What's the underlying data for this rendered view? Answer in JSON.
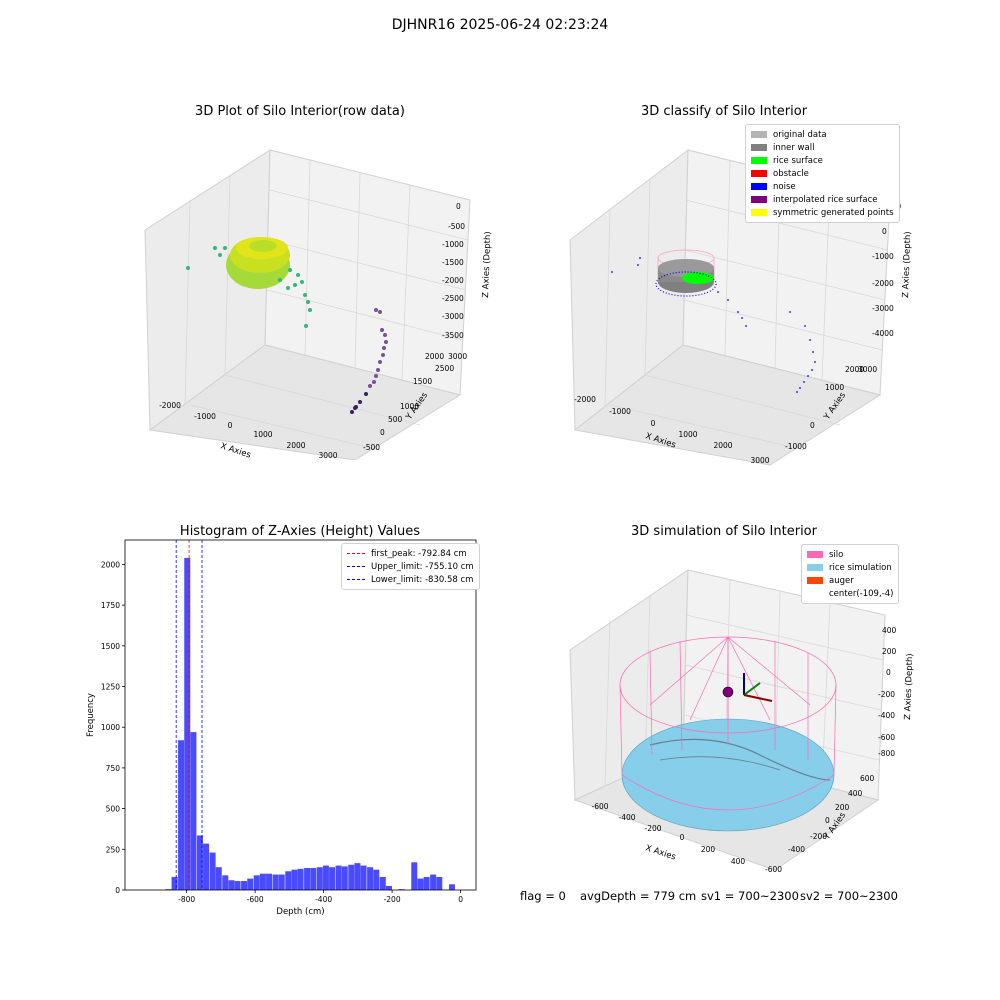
{
  "suptitle": "DJHNR16 2025-06-24 02:23:24",
  "panels": {
    "raw": {
      "title": "3D Plot of Silo Interior(row data)",
      "xlabel": "X Axies",
      "ylabel": "Y Axies",
      "zlabel": "Z Axies (Depth)",
      "xticks": [
        "-2000",
        "-1000",
        "0",
        "1000",
        "2000",
        "3000"
      ],
      "yticks": [
        "-500",
        "0",
        "500",
        "1000",
        "1500",
        "2000",
        "2500",
        "3000"
      ],
      "zticks": [
        "0",
        "-500",
        "-1000",
        "-1500",
        "-2000",
        "-2500",
        "-3000",
        "-3500"
      ]
    },
    "classify": {
      "title": "3D classify of Silo Interior",
      "xlabel": "X Axies",
      "ylabel": "Y Axies",
      "zlabel": "Z Axies (Depth)",
      "xticks": [
        "-2000",
        "-1000",
        "0",
        "1000",
        "2000",
        "3000"
      ],
      "yticks": [
        "-1000",
        "0",
        "1000",
        "2000",
        "3000"
      ],
      "zticks": [
        "1000",
        "0",
        "-1000",
        "-2000",
        "-3000",
        "-4000"
      ],
      "legend": [
        {
          "label": "original data",
          "color": "#b4b4b4"
        },
        {
          "label": "inner wall",
          "color": "#808080"
        },
        {
          "label": "rice surface",
          "color": "#00ff00"
        },
        {
          "label": "obstacle",
          "color": "#ff0000"
        },
        {
          "label": "noise",
          "color": "#0000ff"
        },
        {
          "label": "interpolated rice surface",
          "color": "#800080"
        },
        {
          "label": "symmetric generated points",
          "color": "#ffff00"
        }
      ]
    },
    "histogram": {
      "title": "Histogram of Z-Axies (Height) Values",
      "legend": [
        {
          "label": "first_peak: -792.84 cm",
          "color": "#ff0000"
        },
        {
          "label": "Upper_limit: -755.10 cm",
          "color": "#0000ff"
        },
        {
          "label": "Lower_limit: -830.58 cm",
          "color": "#0000ff"
        }
      ]
    },
    "simulation": {
      "title": "3D simulation of Silo Interior",
      "xlabel": "X Axies",
      "ylabel": "Y Axies",
      "zlabel": "Z Axies (Depth)",
      "xticks": [
        "-600",
        "-400",
        "-200",
        "0",
        "200",
        "400"
      ],
      "yticks": [
        "-600",
        "-400",
        "-200",
        "0",
        "200",
        "400",
        "600"
      ],
      "zticks": [
        "400",
        "200",
        "0",
        "-200",
        "-400",
        "-600",
        "-800"
      ],
      "legend": [
        {
          "label": "silo",
          "color": "#ff69b4"
        },
        {
          "label": "rice simulation",
          "color": "#87ceeb"
        },
        {
          "label": "auger",
          "color": "#ff4500"
        },
        {
          "label": "center(-109,-4)",
          "color": ""
        }
      ]
    }
  },
  "status": {
    "flag": "flag = 0",
    "avg": "avgDepth = 779 cm",
    "sv1": "sv1 = 700~2300",
    "sv2": "sv2 = 700~2300"
  },
  "chart_data": [
    {
      "type": "bar",
      "title": "Histogram of Z-Axies (Height) Values",
      "xlabel": "Depth (cm)",
      "ylabel": "Frequency",
      "xlim": [
        -980,
        45
      ],
      "ylim": [
        0,
        2150
      ],
      "xticks": [
        -800,
        -600,
        -400,
        -200,
        0
      ],
      "yticks": [
        0,
        250,
        500,
        750,
        1000,
        1250,
        1500,
        1750,
        2000
      ],
      "bin_width": 18.4,
      "bins": [
        [
          -862,
          5
        ],
        [
          -844,
          80
        ],
        [
          -825,
          920
        ],
        [
          -807,
          2040
        ],
        [
          -789,
          970
        ],
        [
          -770,
          335
        ],
        [
          -752,
          285
        ],
        [
          -733,
          230
        ],
        [
          -715,
          140
        ],
        [
          -696,
          90
        ],
        [
          -678,
          60
        ],
        [
          -660,
          55
        ],
        [
          -641,
          55
        ],
        [
          -623,
          70
        ],
        [
          -604,
          90
        ],
        [
          -586,
          100
        ],
        [
          -568,
          100
        ],
        [
          -549,
          95
        ],
        [
          -531,
          95
        ],
        [
          -512,
          115
        ],
        [
          -494,
          125
        ],
        [
          -476,
          130
        ],
        [
          -457,
          135
        ],
        [
          -439,
          135
        ],
        [
          -420,
          140
        ],
        [
          -402,
          150
        ],
        [
          -384,
          140
        ],
        [
          -365,
          150
        ],
        [
          -347,
          145
        ],
        [
          -328,
          155
        ],
        [
          -310,
          165
        ],
        [
          -292,
          150
        ],
        [
          -273,
          140
        ],
        [
          -255,
          125
        ],
        [
          -236,
          80
        ],
        [
          -218,
          25
        ],
        [
          -181,
          5
        ],
        [
          -144,
          170
        ],
        [
          -126,
          70
        ],
        [
          -108,
          80
        ],
        [
          -89,
          95
        ],
        [
          -71,
          80
        ],
        [
          -34,
          35
        ]
      ],
      "vlines": [
        {
          "x": -792.84,
          "color": "#ff0000",
          "name": "first_peak: -792.84 cm"
        },
        {
          "x": -755.1,
          "color": "#0000ff",
          "name": "Upper_limit: -755.10 cm"
        },
        {
          "x": -830.58,
          "color": "#0000ff",
          "name": "Lower_limit: -830.58 cm"
        }
      ],
      "bar_color": "#4a4aff",
      "legend": "top-right"
    },
    {
      "type": "scatter",
      "title": "3D Plot of Silo Interior(row data)",
      "xlabel": "X Axies",
      "ylabel": "Y Axies",
      "zlabel": "Z Axies (Depth)",
      "xlim": [
        -2400,
        3200
      ],
      "ylim": [
        -600,
        3200
      ],
      "zlim": [
        -3800,
        200
      ],
      "colormap": "viridis",
      "clusters": [
        {
          "x": [
            -1400,
            -1100,
            -900,
            -700,
            -600,
            -500,
            -300,
            0,
            200,
            300,
            400
          ],
          "y": [
            0,
            0,
            0,
            0,
            0,
            0,
            0,
            0,
            0,
            0,
            0
          ],
          "z": [
            -1700,
            -1500,
            -1400,
            -1350,
            -1300,
            -1700,
            -2100,
            -2300,
            -2500,
            -2800,
            -3000
          ]
        },
        {
          "x": [
            2200,
            2300,
            2350,
            2400,
            2450,
            2500,
            2550,
            2600,
            2650
          ],
          "y": [
            1200,
            1300,
            1400,
            1500,
            1600,
            1700,
            1800,
            1900,
            2000
          ],
          "z": [
            -3300,
            -3200,
            -3100,
            -3000,
            -2800,
            -2600,
            -2500,
            -2300,
            -2000
          ]
        }
      ]
    }
  ]
}
